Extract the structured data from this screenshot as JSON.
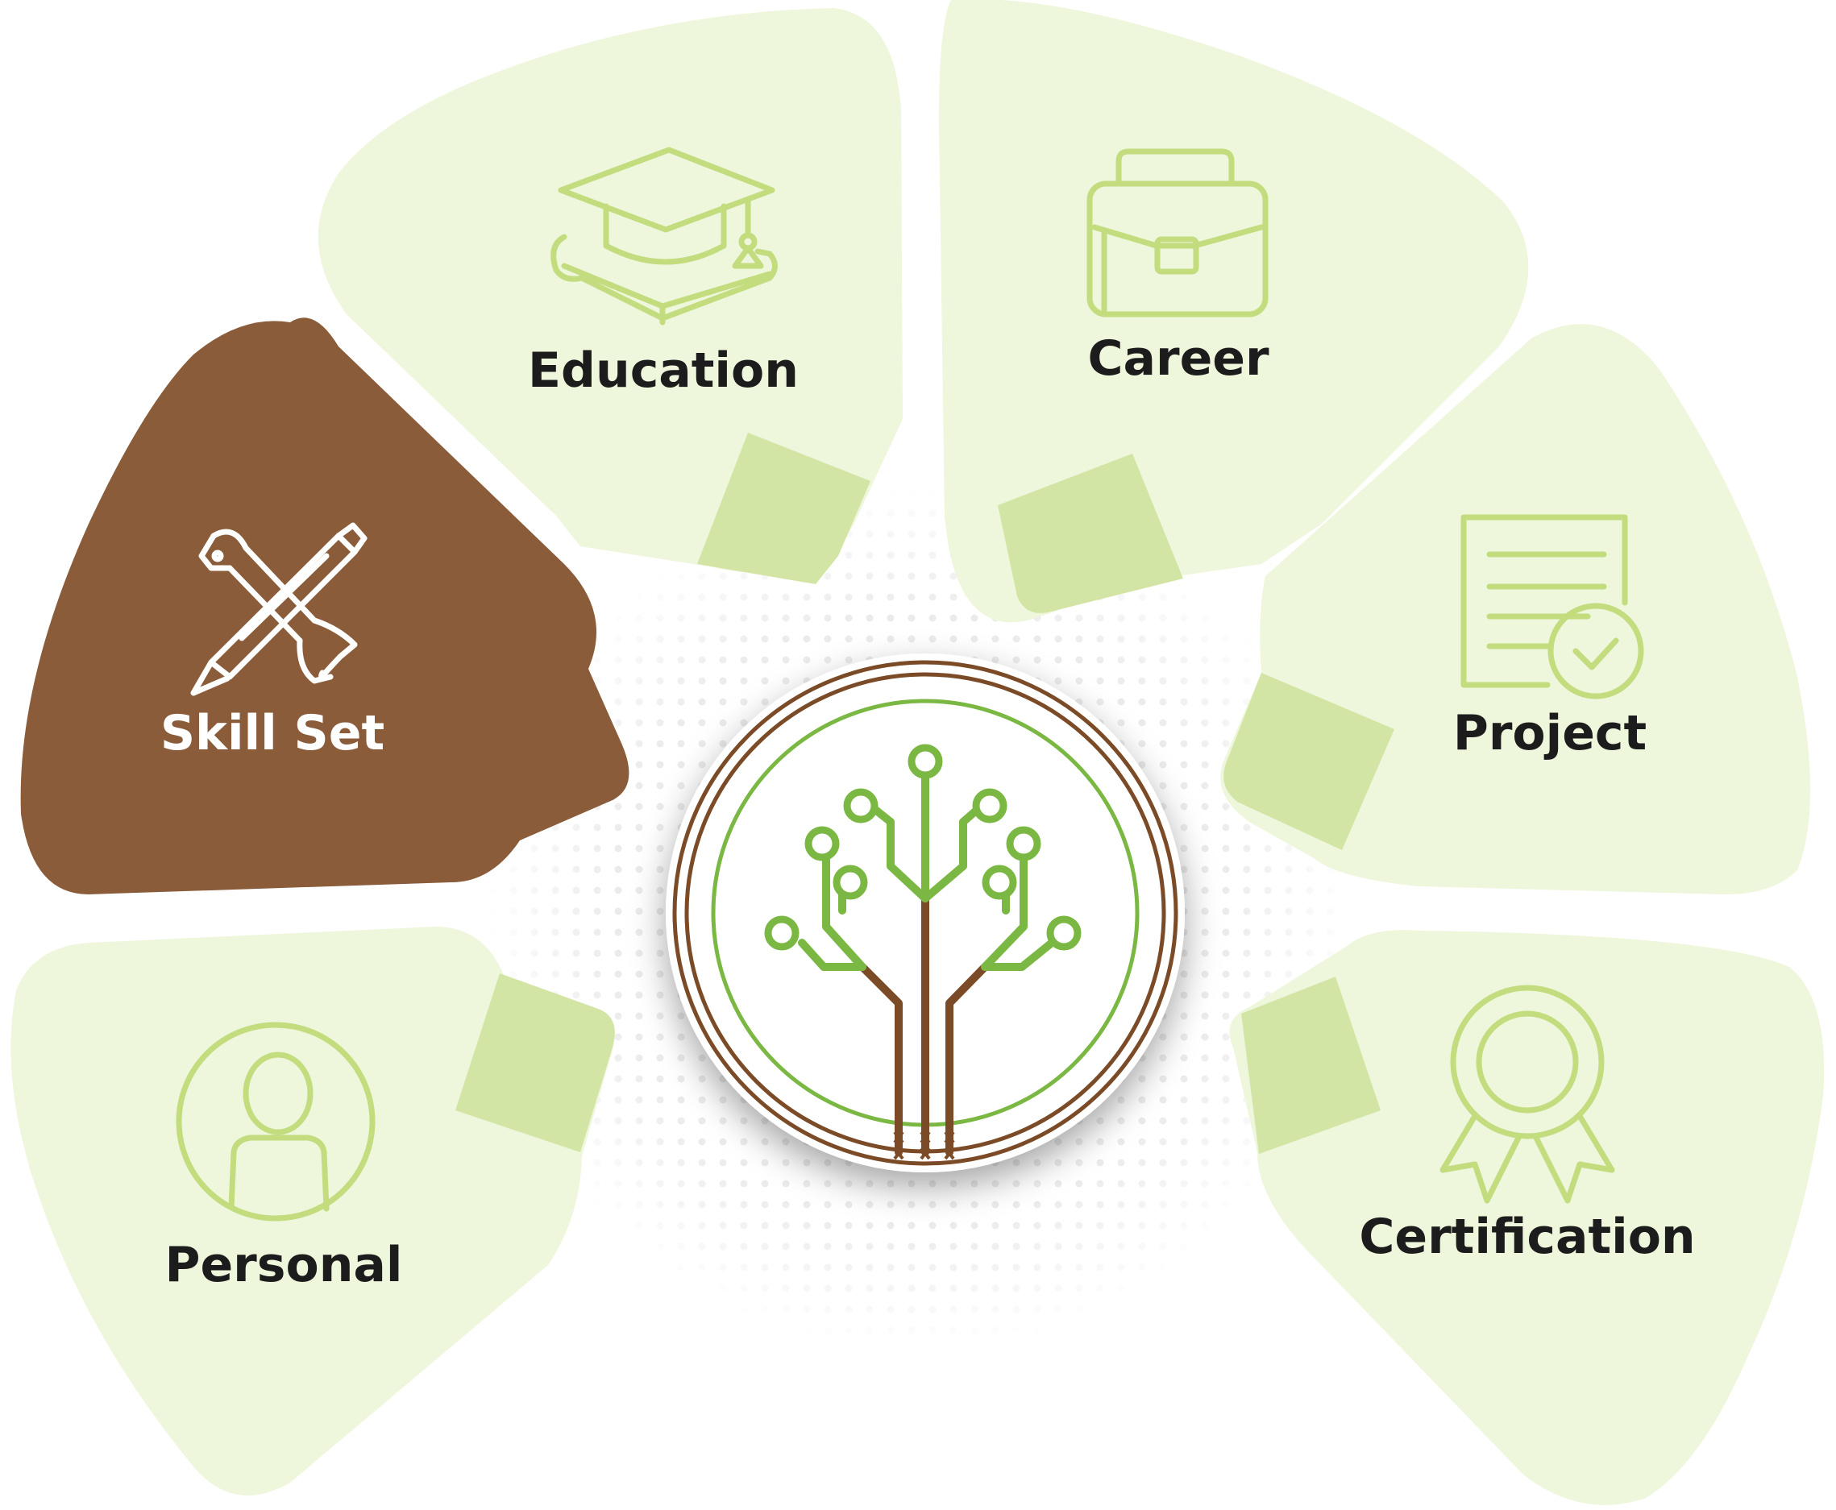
{
  "segments": {
    "education": {
      "label": "Education",
      "icon": "graduation-cap-icon"
    },
    "career": {
      "label": "Career",
      "icon": "briefcase-icon"
    },
    "skill_set": {
      "label": "Skill Set",
      "icon": "wrench-pencil-icon"
    },
    "project": {
      "label": "Project",
      "icon": "checklist-document-icon"
    },
    "personal": {
      "label": "Personal",
      "icon": "user-icon"
    },
    "certification": {
      "label": "Certification",
      "icon": "award-ribbon-icon"
    }
  },
  "center": {
    "icon": "circuit-tree-icon"
  },
  "colors": {
    "segment_fill": "#eef6dc",
    "connector_fill": "#d2e5a5",
    "active_fill": "#8a5c3a",
    "icon_stroke": "#c2dc7e",
    "active_icon_stroke": "#ffffff",
    "label_text": "#1c1c1c",
    "active_label_text": "#ffffff",
    "tree_green": "#7bb843",
    "tree_brown": "#7b4a26"
  }
}
